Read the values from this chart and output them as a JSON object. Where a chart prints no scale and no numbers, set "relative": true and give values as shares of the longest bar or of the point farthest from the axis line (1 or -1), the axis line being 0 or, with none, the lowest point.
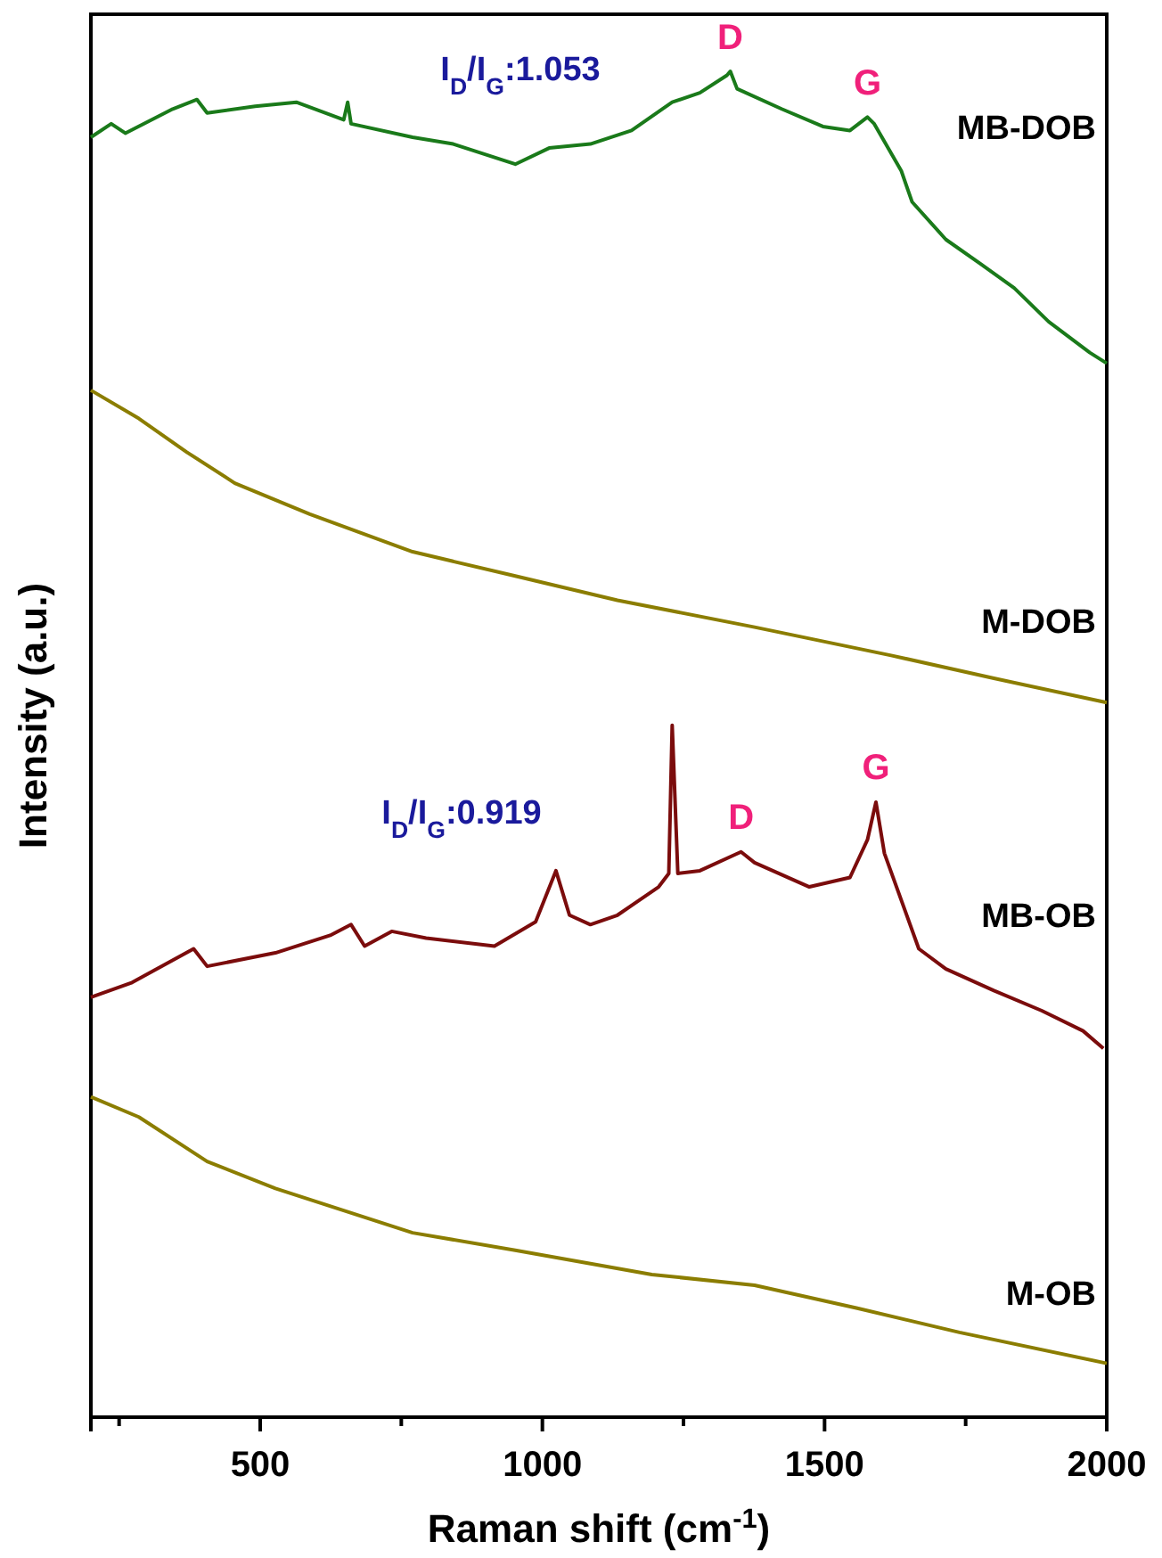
{
  "chart_data": {
    "type": "line",
    "relative": true,
    "xlabel": "Raman shift (cm$^{-1}$)",
    "ylabel": "Intensity (a.u.)",
    "xlim": [
      200,
      2000
    ],
    "xticks": [
      {
        "value": 250,
        "label": null
      },
      500,
      {
        "value": 750,
        "label": null
      },
      1000,
      {
        "value": 1250,
        "label": null
      },
      1500,
      {
        "value": 1750,
        "label": null
      },
      2000
    ],
    "grid": false,
    "legend": false,
    "marker": "none",
    "line_style": "solid",
    "annotations": [
      "I$_{D}$/I$_{G}$:1.053",
      "I$_{D}$/I$_{G}$:0.919",
      {
        "text": "D",
        "x": 1333,
        "y": 1.0
      },
      {
        "text": "G",
        "x": 1576,
        "y": 0.966
      },
      {
        "text": "D",
        "x": 1352,
        "y": 0.42
      },
      {
        "text": "G",
        "x": 1591,
        "y": 0.457
      }
    ],
    "series": [
      {
        "name": "MB-DOB",
        "color": "#1a7a1a",
        "x": [
          200,
          236,
          261,
          345,
          388,
          406,
          491,
          564,
          648,
          655,
          661,
          770,
          842,
          952,
          1012,
          1085,
          1158,
          1230,
          1279,
          1327,
          1333,
          1345,
          1424,
          1497,
          1545,
          1576,
          1588,
          1636,
          1655,
          1715,
          1776,
          1836,
          1897,
          1970,
          2000
        ],
        "values": [
          0.951,
          0.961,
          0.954,
          0.972,
          0.979,
          0.969,
          0.974,
          0.977,
          0.964,
          0.977,
          0.961,
          0.951,
          0.946,
          0.931,
          0.943,
          0.946,
          0.956,
          0.977,
          0.984,
          0.997,
          1.0,
          0.987,
          0.972,
          0.959,
          0.956,
          0.966,
          0.961,
          0.926,
          0.903,
          0.875,
          0.857,
          0.839,
          0.814,
          0.791,
          0.783
        ]
      },
      {
        "name": "M-DOB",
        "color": "#8b7d00",
        "x": [
          200,
          285,
          370,
          455,
          588,
          770,
          952,
          1133,
          1376,
          1618,
          1800,
          2000
        ],
        "values": [
          0.763,
          0.742,
          0.717,
          0.694,
          0.671,
          0.643,
          0.625,
          0.607,
          0.587,
          0.566,
          0.549,
          0.531
        ]
      },
      {
        "name": "MB-OB",
        "color": "#7b0c0c",
        "x": [
          200,
          273,
          382,
          406,
          527,
          624,
          661,
          685,
          733,
          794,
          915,
          988,
          1024,
          1048,
          1085,
          1133,
          1206,
          1224,
          1230,
          1240,
          1279,
          1352,
          1376,
          1473,
          1545,
          1576,
          1591,
          1606,
          1667,
          1715,
          1800,
          1885,
          1958,
          1994
        ],
        "values": [
          0.312,
          0.323,
          0.348,
          0.335,
          0.345,
          0.358,
          0.366,
          0.35,
          0.361,
          0.356,
          0.35,
          0.368,
          0.406,
          0.373,
          0.366,
          0.373,
          0.394,
          0.404,
          0.514,
          0.404,
          0.406,
          0.42,
          0.412,
          0.394,
          0.401,
          0.429,
          0.457,
          0.419,
          0.348,
          0.333,
          0.317,
          0.302,
          0.287,
          0.274
        ]
      },
      {
        "name": "M-OB",
        "color": "#8b7d00",
        "x": [
          200,
          285,
          406,
          527,
          770,
          952,
          1194,
          1376,
          1558,
          1739,
          2000
        ],
        "values": [
          0.238,
          0.223,
          0.19,
          0.17,
          0.137,
          0.124,
          0.106,
          0.098,
          0.081,
          0.063,
          0.04
        ]
      }
    ]
  }
}
